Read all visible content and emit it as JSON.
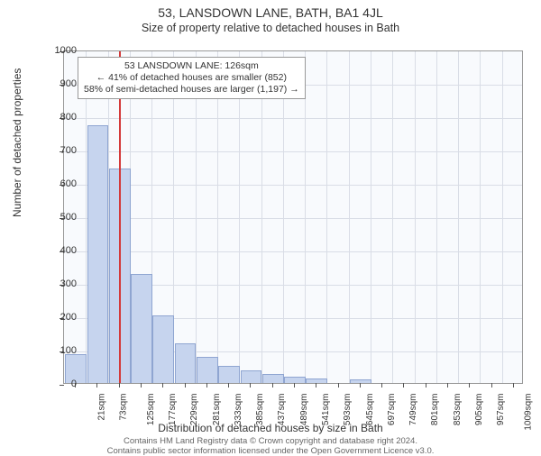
{
  "title": "53, LANSDOWN LANE, BATH, BA1 4JL",
  "subtitle": "Size of property relative to detached houses in Bath",
  "y_axis_label": "Number of detached properties",
  "x_axis_label": "Distribution of detached houses by size in Bath",
  "footer_line1": "Contains HM Land Registry data © Crown copyright and database right 2024.",
  "footer_line2": "Contains public sector information licensed under the Open Government Licence v3.0.",
  "chart": {
    "type": "histogram",
    "plot_bg": "#f8fafd",
    "grid_color": "#d9dde6",
    "border_color": "#999999",
    "bar_fill": "#c6d4ee",
    "bar_stroke": "#8fa5d1",
    "marker_color": "#d43a3a",
    "marker_value_sqm": 126,
    "ylim": [
      0,
      1000
    ],
    "ytick_step": 100,
    "x_start": 21,
    "x_step": 52,
    "x_count": 21,
    "x_unit": "sqm",
    "values": [
      85,
      770,
      640,
      325,
      200,
      115,
      75,
      50,
      35,
      25,
      15,
      10,
      0,
      8,
      0,
      0,
      0,
      0,
      0,
      0,
      0
    ],
    "y_label_fontsize": 11,
    "x_label_fontsize": 10,
    "axis_title_fontsize": 12
  },
  "annotation": {
    "line1": "53 LANSDOWN LANE: 126sqm",
    "line2": "← 41% of detached houses are smaller (852)",
    "line3": "58% of semi-detached houses are larger (1,197) →"
  }
}
